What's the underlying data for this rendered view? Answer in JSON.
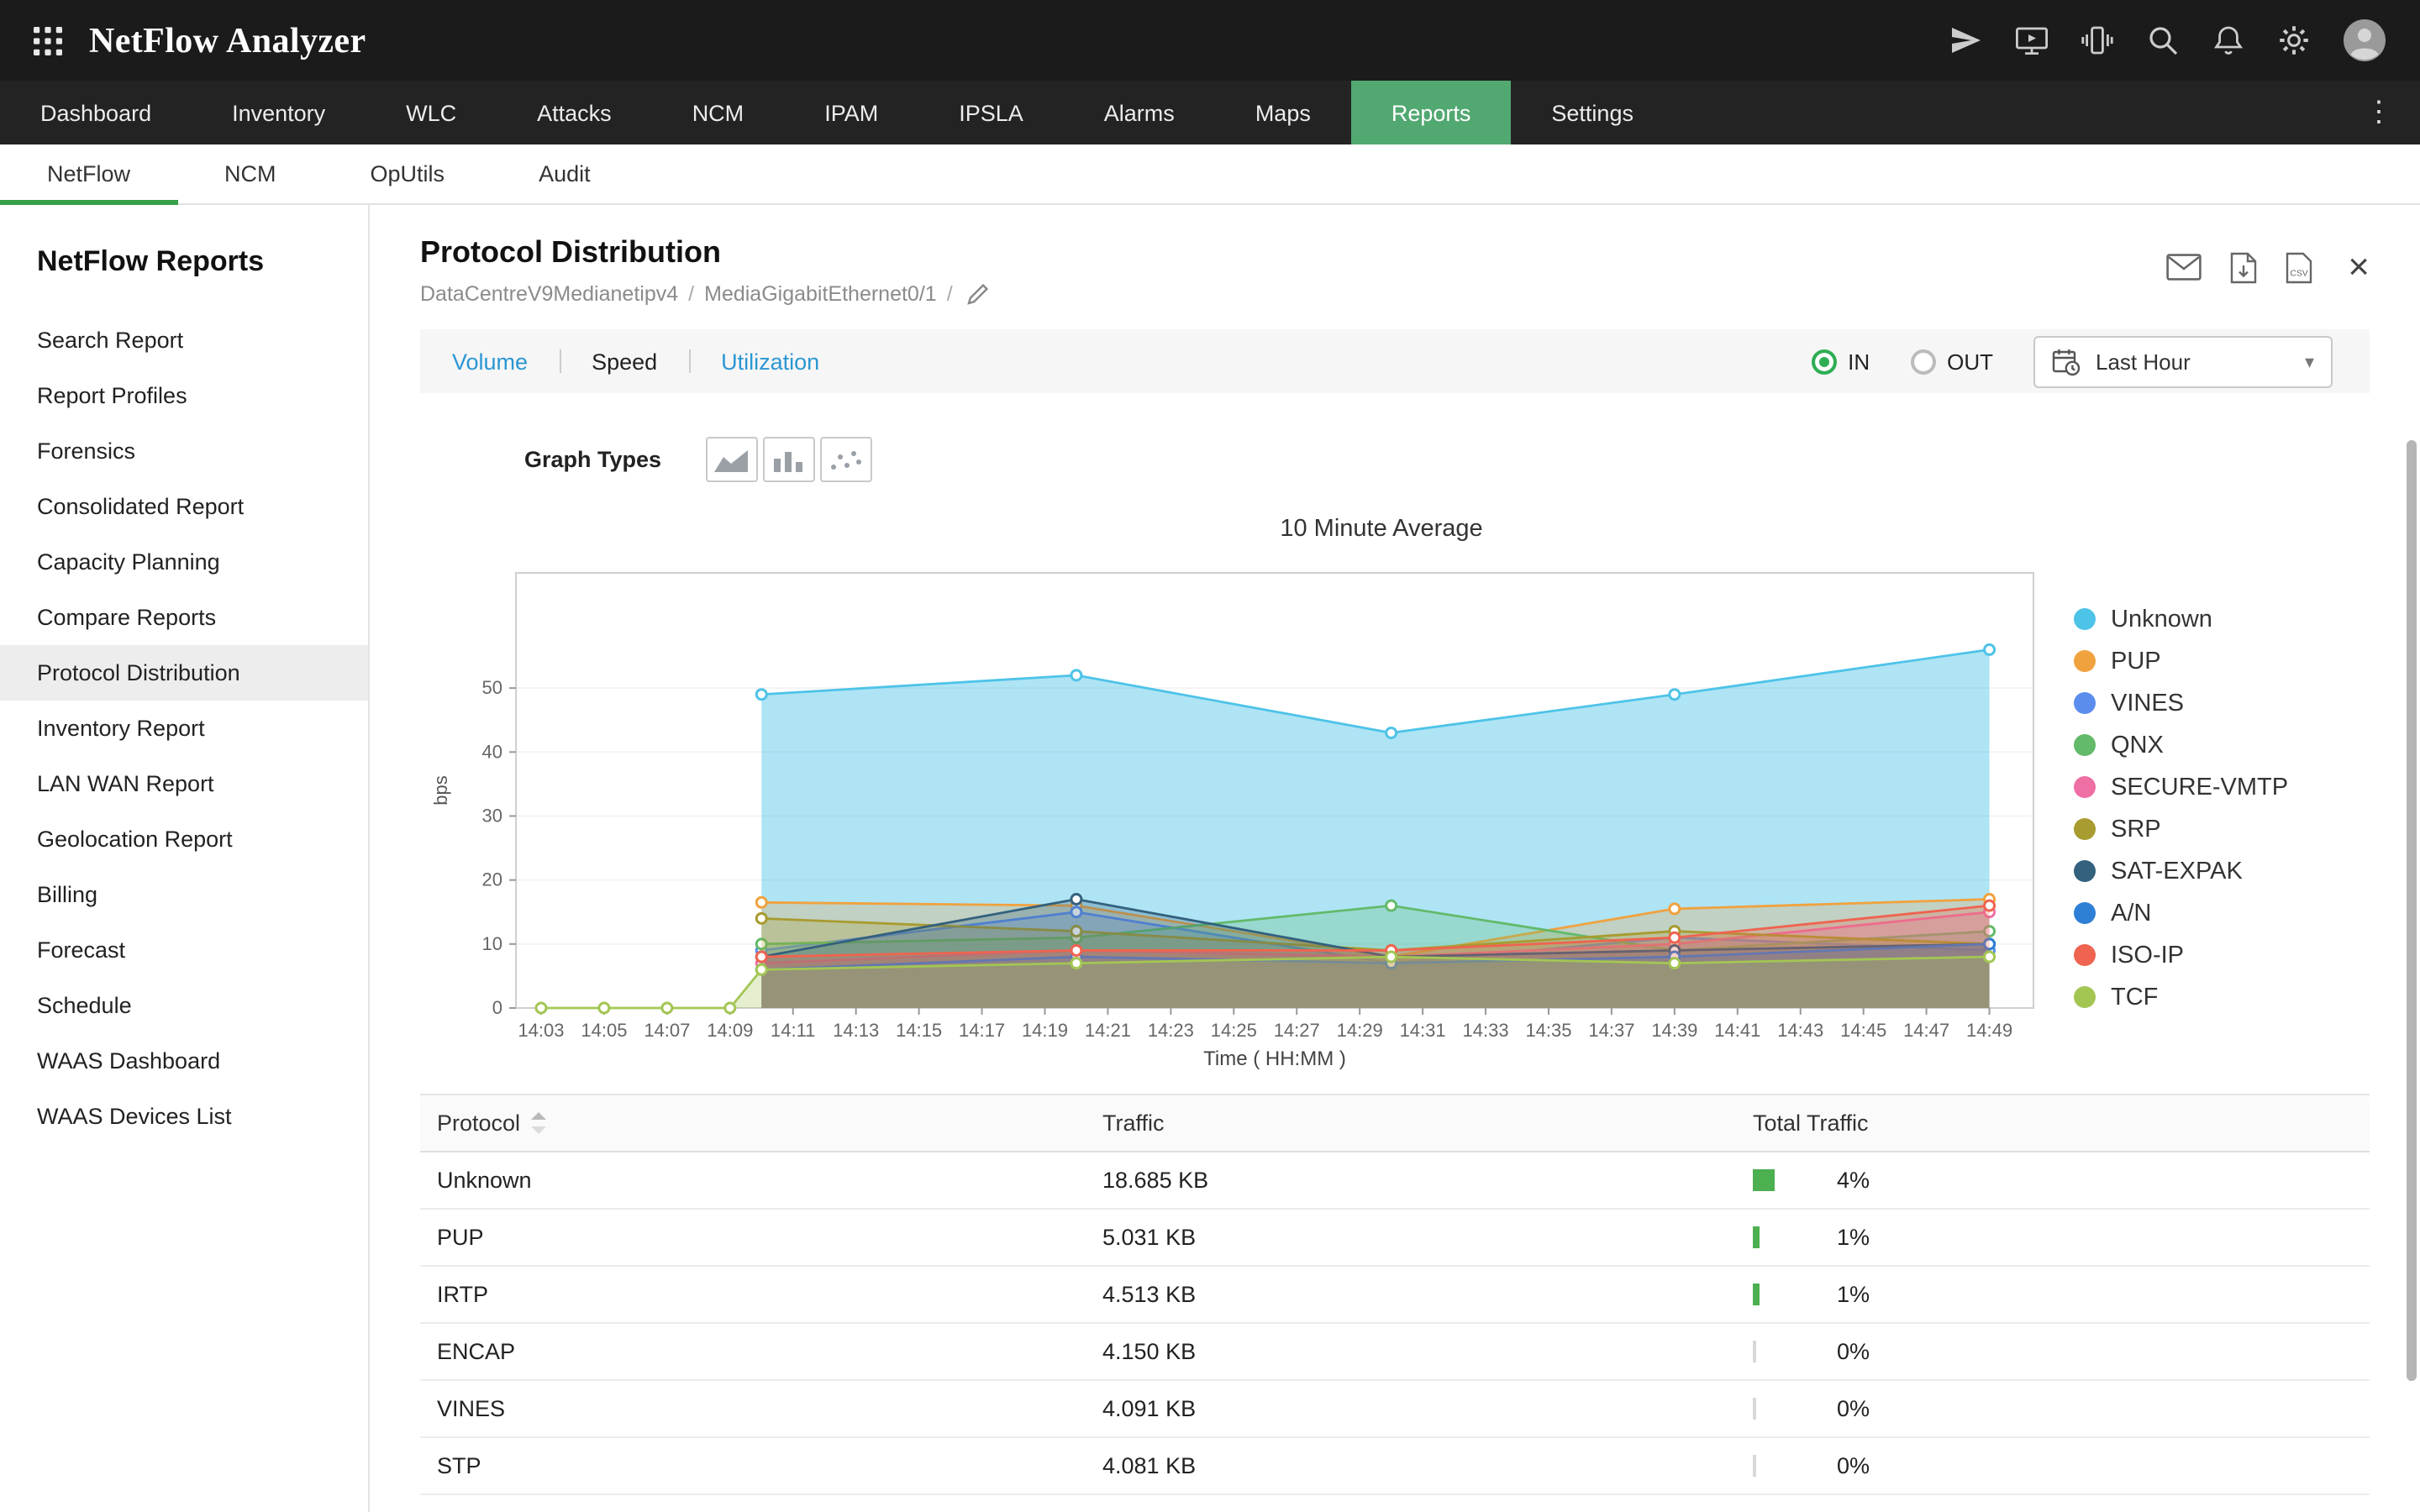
{
  "header": {
    "app_title": "NetFlow Analyzer"
  },
  "topnav": {
    "items": [
      {
        "label": "Dashboard"
      },
      {
        "label": "Inventory"
      },
      {
        "label": "WLC"
      },
      {
        "label": "Attacks"
      },
      {
        "label": "NCM"
      },
      {
        "label": "IPAM"
      },
      {
        "label": "IPSLA"
      },
      {
        "label": "Alarms"
      },
      {
        "label": "Maps"
      },
      {
        "label": "Reports",
        "active": true
      },
      {
        "label": "Settings"
      }
    ]
  },
  "subnav": {
    "items": [
      {
        "label": "NetFlow",
        "active": true
      },
      {
        "label": "NCM"
      },
      {
        "label": "OpUtils"
      },
      {
        "label": "Audit"
      }
    ]
  },
  "sidebar": {
    "title": "NetFlow Reports",
    "items": [
      {
        "label": "Search Report"
      },
      {
        "label": "Report Profiles"
      },
      {
        "label": "Forensics"
      },
      {
        "label": "Consolidated Report"
      },
      {
        "label": "Capacity Planning"
      },
      {
        "label": "Compare Reports"
      },
      {
        "label": "Protocol Distribution",
        "active": true
      },
      {
        "label": "Inventory Report"
      },
      {
        "label": "LAN WAN Report"
      },
      {
        "label": "Geolocation Report"
      },
      {
        "label": "Billing"
      },
      {
        "label": "Forecast"
      },
      {
        "label": "Schedule"
      },
      {
        "label": "WAAS Dashboard"
      },
      {
        "label": "WAAS Devices List"
      }
    ]
  },
  "report": {
    "title": "Protocol Distribution",
    "breadcrumb": [
      "DataCentreV9Medianetipv4",
      "MediaGigabitEthernet0/1"
    ],
    "tabs": [
      {
        "label": "Volume"
      },
      {
        "label": "Speed",
        "active": true
      },
      {
        "label": "Utilization"
      }
    ],
    "direction": {
      "options": [
        {
          "label": "IN",
          "selected": true
        },
        {
          "label": "OUT",
          "selected": false
        }
      ]
    },
    "time_range": "Last Hour",
    "graph_types_label": "Graph Types"
  },
  "chart_data": {
    "type": "area",
    "title": "10 Minute Average",
    "xlabel": "Time ( HH:MM )",
    "ylabel": "bps",
    "x_ticks": [
      "14:03",
      "14:05",
      "14:07",
      "14:09",
      "14:11",
      "14:13",
      "14:15",
      "14:17",
      "14:19",
      "14:21",
      "14:23",
      "14:25",
      "14:27",
      "14:29",
      "14:31",
      "14:33",
      "14:35",
      "14:37",
      "14:39",
      "14:41",
      "14:43",
      "14:45",
      "14:47",
      "14:49"
    ],
    "y_ticks": [
      0,
      10,
      20,
      30,
      40,
      50
    ],
    "ylim": [
      0,
      68
    ],
    "grid": false,
    "legend_position": "right",
    "series": [
      {
        "name": "Unknown",
        "color": "#4ec3e8",
        "points": [
          [
            "14:10",
            49
          ],
          [
            "14:20",
            52
          ],
          [
            "14:30",
            43
          ],
          [
            "14:39",
            49
          ],
          [
            "14:49",
            56
          ]
        ]
      },
      {
        "name": "PUP",
        "color": "#f0a23f",
        "points": [
          [
            "14:10",
            16.5
          ],
          [
            "14:20",
            16
          ],
          [
            "14:30",
            8
          ],
          [
            "14:39",
            15.5
          ],
          [
            "14:49",
            17
          ]
        ]
      },
      {
        "name": "VINES",
        "color": "#5b8def",
        "points": [
          [
            "14:10",
            9
          ],
          [
            "14:20",
            15
          ],
          [
            "14:30",
            7
          ],
          [
            "14:39",
            11
          ],
          [
            "14:49",
            9
          ]
        ]
      },
      {
        "name": "QNX",
        "color": "#62ba6a",
        "points": [
          [
            "14:10",
            10
          ],
          [
            "14:20",
            11
          ],
          [
            "14:30",
            16
          ],
          [
            "14:39",
            9
          ],
          [
            "14:49",
            12
          ]
        ]
      },
      {
        "name": "SECURE-VMTP",
        "color": "#ee6fa4",
        "points": [
          [
            "14:10",
            7
          ],
          [
            "14:20",
            9
          ],
          [
            "14:30",
            8
          ],
          [
            "14:39",
            10
          ],
          [
            "14:49",
            15
          ]
        ]
      },
      {
        "name": "SRP",
        "color": "#a89b2f",
        "points": [
          [
            "14:10",
            14
          ],
          [
            "14:20",
            12
          ],
          [
            "14:30",
            9
          ],
          [
            "14:39",
            12
          ],
          [
            "14:49",
            10
          ]
        ]
      },
      {
        "name": "SAT-EXPAK",
        "color": "#33617e",
        "points": [
          [
            "14:10",
            8
          ],
          [
            "14:20",
            17
          ],
          [
            "14:30",
            8
          ],
          [
            "14:39",
            9
          ],
          [
            "14:49",
            10
          ]
        ]
      },
      {
        "name": "A/N",
        "color": "#2e7fd6",
        "points": [
          [
            "14:10",
            6
          ],
          [
            "14:20",
            8
          ],
          [
            "14:30",
            7
          ],
          [
            "14:39",
            8
          ],
          [
            "14:49",
            10
          ]
        ]
      },
      {
        "name": "ISO-IP",
        "color": "#ee6450",
        "points": [
          [
            "14:10",
            8
          ],
          [
            "14:20",
            9
          ],
          [
            "14:30",
            9
          ],
          [
            "14:39",
            11
          ],
          [
            "14:49",
            16
          ]
        ]
      },
      {
        "name": "TCF",
        "color": "#a3c653",
        "points": [
          [
            "14:03",
            0
          ],
          [
            "14:05",
            0
          ],
          [
            "14:07",
            0
          ],
          [
            "14:09",
            0
          ],
          [
            "14:10",
            6
          ],
          [
            "14:20",
            7
          ],
          [
            "14:30",
            8
          ],
          [
            "14:39",
            7
          ],
          [
            "14:49",
            8
          ]
        ]
      }
    ]
  },
  "table": {
    "columns": [
      "Protocol",
      "Traffic",
      "Total Traffic"
    ],
    "rows": [
      {
        "protocol": "Unknown",
        "traffic": "18.685 KB",
        "percent": 4,
        "percent_label": "4%"
      },
      {
        "protocol": "PUP",
        "traffic": "5.031 KB",
        "percent": 1,
        "percent_label": "1%"
      },
      {
        "protocol": "IRTP",
        "traffic": "4.513 KB",
        "percent": 1,
        "percent_label": "1%"
      },
      {
        "protocol": "ENCAP",
        "traffic": "4.150 KB",
        "percent": 0,
        "percent_label": "0%"
      },
      {
        "protocol": "VINES",
        "traffic": "4.091 KB",
        "percent": 0,
        "percent_label": "0%"
      },
      {
        "protocol": "STP",
        "traffic": "4.081 KB",
        "percent": 0,
        "percent_label": "0%"
      }
    ]
  },
  "colors": {
    "accent_green": "#52a871",
    "subnav_green": "#35a048",
    "link_blue": "#2b97d3",
    "radio_green": "#2fae54",
    "bar_green": "#4caf50"
  }
}
